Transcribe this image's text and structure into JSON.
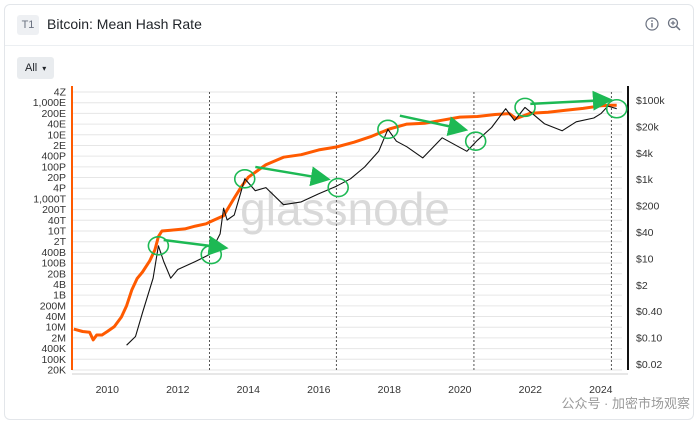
{
  "header": {
    "badge": "T1",
    "title": "Bitcoin: Mean Hash Rate",
    "info_icon": "info-icon",
    "zoom_icon": "zoom-in-icon"
  },
  "controls": {
    "range_label": "All",
    "range_caret": "▾"
  },
  "watermark": "glassnode",
  "source_watermark": "公众号 · 加密市场观察",
  "colors": {
    "hash_rate": "#ff5a00",
    "price": "#111111",
    "annotation": "#1db954",
    "gridline": "#e6e6e6"
  },
  "chart_data": {
    "type": "line",
    "title": "Bitcoin: Mean Hash Rate",
    "x_ticks": [
      "2010",
      "2012",
      "2014",
      "2016",
      "2018",
      "2020",
      "2022",
      "2024"
    ],
    "x_range": [
      2009.0,
      2024.6
    ],
    "left_axis": {
      "scale": "log",
      "ticks": [
        "4Z",
        "1,000E",
        "200E",
        "40E",
        "10E",
        "2E",
        "400P",
        "100P",
        "20P",
        "4P",
        "1,000T",
        "200T",
        "40T",
        "10T",
        "2T",
        "400B",
        "100B",
        "20B",
        "4B",
        "1B",
        "200M",
        "40M",
        "10M",
        "2M",
        "400K",
        "100K",
        "20K"
      ]
    },
    "right_axis": {
      "scale": "log",
      "ticks": [
        "$100k",
        "$20k",
        "$4k",
        "$1k",
        "$200",
        "$40",
        "$10",
        "$2",
        "$0.40",
        "$0.10",
        "$0.02"
      ]
    },
    "halving_lines": [
      2012.9,
      2016.5,
      2020.4,
      2024.3
    ],
    "series": [
      {
        "axis": "left",
        "unit": "H/s",
        "points": [
          [
            2009.05,
            7000000.0
          ],
          [
            2009.3,
            5000000.0
          ],
          [
            2009.5,
            4500000.0
          ],
          [
            2009.6,
            1500000.0
          ],
          [
            2009.7,
            3000000.0
          ],
          [
            2009.85,
            3000000.0
          ],
          [
            2010.0,
            5000000.0
          ],
          [
            2010.2,
            10000000.0
          ],
          [
            2010.4,
            40000000.0
          ],
          [
            2010.55,
            200000000.0
          ],
          [
            2010.7,
            2000000000.0
          ],
          [
            2010.85,
            10000000000.0
          ],
          [
            2011.0,
            25000000000.0
          ],
          [
            2011.2,
            120000000000.0
          ],
          [
            2011.35,
            600000000000.0
          ],
          [
            2011.45,
            4000000000000.0
          ],
          [
            2011.55,
            9000000000000.0
          ],
          [
            2011.8,
            10000000000000.0
          ],
          [
            2012.2,
            12000000000000.0
          ],
          [
            2012.5,
            18000000000000.0
          ],
          [
            2012.8,
            25000000000000.0
          ],
          [
            2013.0,
            40000000000000.0
          ],
          [
            2013.3,
            80000000000000.0
          ],
          [
            2013.6,
            1000000000000000.0
          ],
          [
            2013.8,
            5000000000000000.0
          ],
          [
            2014.0,
            2e+16
          ],
          [
            2014.5,
            1.2e+17
          ],
          [
            2015.0,
            3.5e+17
          ],
          [
            2015.5,
            5e+17
          ],
          [
            2016.0,
            1e+18
          ],
          [
            2016.5,
            1.5e+18
          ],
          [
            2017.0,
            3e+18
          ],
          [
            2017.5,
            7e+18
          ],
          [
            2018.0,
            2e+19
          ],
          [
            2018.5,
            4e+19
          ],
          [
            2019.0,
            4.5e+19
          ],
          [
            2019.5,
            7e+19
          ],
          [
            2020.0,
            1.1e+20
          ],
          [
            2020.5,
            1.2e+20
          ],
          [
            2021.0,
            1.6e+20
          ],
          [
            2021.4,
            1.8e+20
          ],
          [
            2021.6,
            9e+19
          ],
          [
            2022.0,
            1.9e+20
          ],
          [
            2022.5,
            2.2e+20
          ],
          [
            2023.0,
            2.9e+20
          ],
          [
            2023.5,
            3.8e+20
          ],
          [
            2024.0,
            5.5e+20
          ],
          [
            2024.3,
            6e+20
          ],
          [
            2024.45,
            6e+20
          ]
        ]
      },
      {
        "axis": "right",
        "unit": "USD",
        "points": [
          [
            2010.55,
            0.06
          ],
          [
            2010.8,
            0.1
          ],
          [
            2011.0,
            0.4
          ],
          [
            2011.3,
            3
          ],
          [
            2011.45,
            20
          ],
          [
            2011.6,
            8
          ],
          [
            2011.8,
            3
          ],
          [
            2012.0,
            5
          ],
          [
            2012.5,
            8
          ],
          [
            2012.9,
            12
          ],
          [
            2013.2,
            40
          ],
          [
            2013.3,
            180
          ],
          [
            2013.4,
            90
          ],
          [
            2013.6,
            120
          ],
          [
            2013.9,
            1000
          ],
          [
            2014.2,
            500
          ],
          [
            2014.5,
            600
          ],
          [
            2015.0,
            220
          ],
          [
            2015.5,
            260
          ],
          [
            2016.0,
            420
          ],
          [
            2016.5,
            650
          ],
          [
            2016.9,
            1000
          ],
          [
            2017.3,
            2000
          ],
          [
            2017.7,
            5000
          ],
          [
            2017.96,
            18000
          ],
          [
            2018.2,
            9000
          ],
          [
            2018.5,
            6500
          ],
          [
            2018.95,
            3400
          ],
          [
            2019.5,
            11000
          ],
          [
            2020.2,
            5000
          ],
          [
            2020.5,
            9500
          ],
          [
            2020.9,
            20000
          ],
          [
            2021.3,
            60000
          ],
          [
            2021.55,
            30000
          ],
          [
            2021.85,
            65000
          ],
          [
            2022.4,
            25000
          ],
          [
            2022.9,
            16500
          ],
          [
            2023.3,
            28000
          ],
          [
            2023.8,
            35000
          ],
          [
            2024.0,
            45000
          ],
          [
            2024.2,
            70000
          ],
          [
            2024.45,
            60000
          ]
        ]
      }
    ],
    "annotations": {
      "circles": [
        {
          "x": 2011.45,
          "y": 20
        },
        {
          "x": 2012.95,
          "y": 12
        },
        {
          "x": 2013.9,
          "y": 1000
        },
        {
          "x": 2016.55,
          "y": 600
        },
        {
          "x": 2017.96,
          "y": 18000
        },
        {
          "x": 2020.45,
          "y": 9000
        },
        {
          "x": 2021.85,
          "y": 65000
        },
        {
          "x": 2024.45,
          "y": 60000
        }
      ],
      "arrows": [
        {
          "from": [
            2011.6,
            28
          ],
          "to": [
            2013.3,
            18
          ]
        },
        {
          "from": [
            2014.2,
            2000
          ],
          "to": [
            2016.2,
            1000
          ]
        },
        {
          "from": [
            2018.3,
            40000
          ],
          "to": [
            2020.1,
            18000
          ]
        },
        {
          "from": [
            2022.0,
            80000
          ],
          "to": [
            2024.2,
            100000
          ]
        }
      ]
    }
  }
}
